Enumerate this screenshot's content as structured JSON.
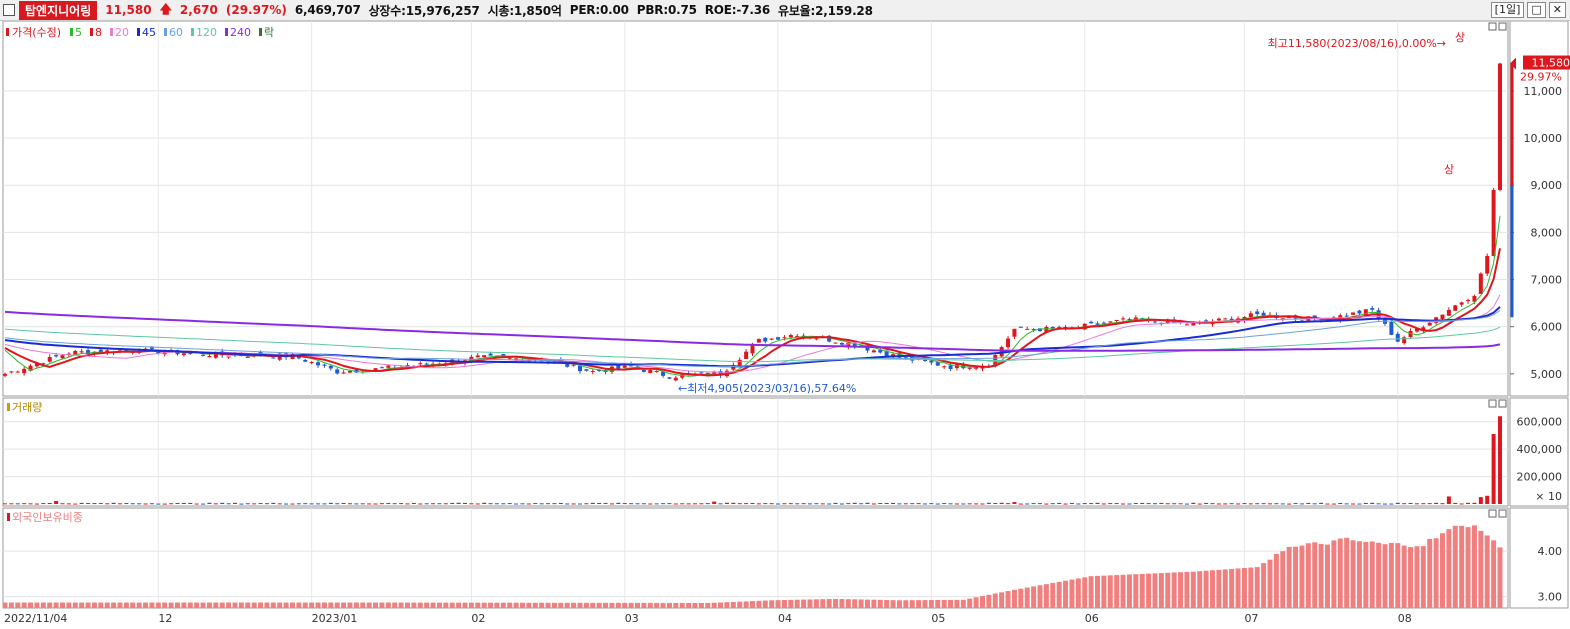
{
  "header": {
    "stock_name": "탑엔지니어링",
    "price": "11,580",
    "change": "2,670",
    "change_pct": "(29.97%)",
    "volume": "6,469,707",
    "listed": "상장수:15,976,257",
    "mcap": "시총:1,850억",
    "per": "PER:0.00",
    "pbr": "PBR:0.75",
    "roe": "ROE:-7.36",
    "float_ratio": "유보율:2,159.28",
    "period": "[1일]"
  },
  "legend": {
    "price": "가격(수정)",
    "ma": [
      "5",
      "8",
      "20",
      "45",
      "60",
      "120",
      "240"
    ],
    "extra": "락",
    "volume": "거래량",
    "foreign": "외국인보유비중"
  },
  "annotations": {
    "high": "최고11,580(2023/08/16),0.00%→",
    "low": "←최저4,905(2023/03/16),57.64%",
    "upper_limit": "상",
    "last_price": "11,580",
    "last_pct": "29.97%",
    "vol_unit": "× 10"
  },
  "colors": {
    "up": "#e0161e",
    "down": "#1f5ad6",
    "ma5": "#2eb82e",
    "ma8": "#e0161e",
    "ma20": "#e87ad8",
    "ma45": "#1a2bd1",
    "ma60": "#6aa0e0",
    "ma120": "#5cc9a0",
    "ma240": "#8a2be2",
    "foreign_bar": "#f08080"
  },
  "chart_data": [
    {
      "type": "candlestick",
      "title": "가격(수정)",
      "x_labels": [
        "2022/11/04",
        "12",
        "2023/01",
        "02",
        "03",
        "04",
        "05",
        "06",
        "07",
        "08"
      ],
      "y_ticks": [
        5000,
        6000,
        7000,
        8000,
        9000,
        10000,
        11000
      ],
      "ylim": [
        4700,
        12100
      ],
      "grid": true,
      "summary": {
        "high": 11580,
        "high_date": "2023/08/16",
        "low": 4905,
        "low_date": "2023/03/16"
      },
      "close_anchors": [
        {
          "i": 0,
          "v": 5000
        },
        {
          "i": 10,
          "v": 5450
        },
        {
          "i": 20,
          "v": 5500
        },
        {
          "i": 34,
          "v": 5400
        },
        {
          "i": 45,
          "v": 5380
        },
        {
          "i": 52,
          "v": 5050
        },
        {
          "i": 58,
          "v": 5100
        },
        {
          "i": 66,
          "v": 5200
        },
        {
          "i": 74,
          "v": 5350
        },
        {
          "i": 84,
          "v": 5300
        },
        {
          "i": 92,
          "v": 5050
        },
        {
          "i": 98,
          "v": 5150
        },
        {
          "i": 104,
          "v": 4950
        },
        {
          "i": 112,
          "v": 5000
        },
        {
          "i": 118,
          "v": 5700
        },
        {
          "i": 124,
          "v": 5850
        },
        {
          "i": 132,
          "v": 5650
        },
        {
          "i": 140,
          "v": 5350
        },
        {
          "i": 148,
          "v": 5150
        },
        {
          "i": 154,
          "v": 5200
        },
        {
          "i": 158,
          "v": 5950
        },
        {
          "i": 166,
          "v": 5950
        },
        {
          "i": 176,
          "v": 6150
        },
        {
          "i": 186,
          "v": 6050
        },
        {
          "i": 196,
          "v": 6250
        },
        {
          "i": 206,
          "v": 6150
        },
        {
          "i": 214,
          "v": 6350
        },
        {
          "i": 218,
          "v": 5700
        },
        {
          "i": 224,
          "v": 6200
        },
        {
          "i": 230,
          "v": 6700
        },
        {
          "i": 232,
          "v": 7500
        },
        {
          "i": 233,
          "v": 8900
        },
        {
          "i": 234,
          "v": 11580
        }
      ],
      "ma_lines": [
        {
          "name": "5",
          "period": 5
        },
        {
          "name": "8",
          "period": 8
        },
        {
          "name": "20",
          "period": 20
        },
        {
          "name": "45",
          "period": 45
        },
        {
          "name": "60",
          "period": 60
        },
        {
          "name": "120",
          "period": 120
        },
        {
          "name": "240",
          "period": 240
        }
      ]
    },
    {
      "type": "bar",
      "title": "거래량",
      "y_ticks": [
        200000,
        400000,
        600000
      ],
      "ylim": [
        0,
        700000
      ],
      "unit": "× 10",
      "spikes": [
        {
          "i": 8,
          "v": 22000
        },
        {
          "i": 111,
          "v": 18000
        },
        {
          "i": 158,
          "v": 14000
        },
        {
          "i": 226,
          "v": 55000
        },
        {
          "i": 231,
          "v": 50000
        },
        {
          "i": 232,
          "v": 60000
        },
        {
          "i": 233,
          "v": 510000
        },
        {
          "i": 234,
          "v": 640000
        }
      ]
    },
    {
      "type": "bar",
      "title": "외국인보유비중",
      "y_ticks": [
        3.0,
        4.0
      ],
      "ylim": [
        2.75,
        4.95
      ],
      "anchors": [
        {
          "i": 0,
          "v": 2.87
        },
        {
          "i": 60,
          "v": 2.87
        },
        {
          "i": 110,
          "v": 2.86
        },
        {
          "i": 120,
          "v": 2.92
        },
        {
          "i": 130,
          "v": 2.95
        },
        {
          "i": 140,
          "v": 2.92
        },
        {
          "i": 150,
          "v": 2.93
        },
        {
          "i": 158,
          "v": 3.15
        },
        {
          "i": 170,
          "v": 3.45
        },
        {
          "i": 186,
          "v": 3.55
        },
        {
          "i": 196,
          "v": 3.65
        },
        {
          "i": 200,
          "v": 4.05
        },
        {
          "i": 210,
          "v": 4.25
        },
        {
          "i": 216,
          "v": 4.15
        },
        {
          "i": 222,
          "v": 4.15
        },
        {
          "i": 228,
          "v": 4.6
        },
        {
          "i": 231,
          "v": 4.5
        },
        {
          "i": 234,
          "v": 4.05
        }
      ]
    }
  ]
}
